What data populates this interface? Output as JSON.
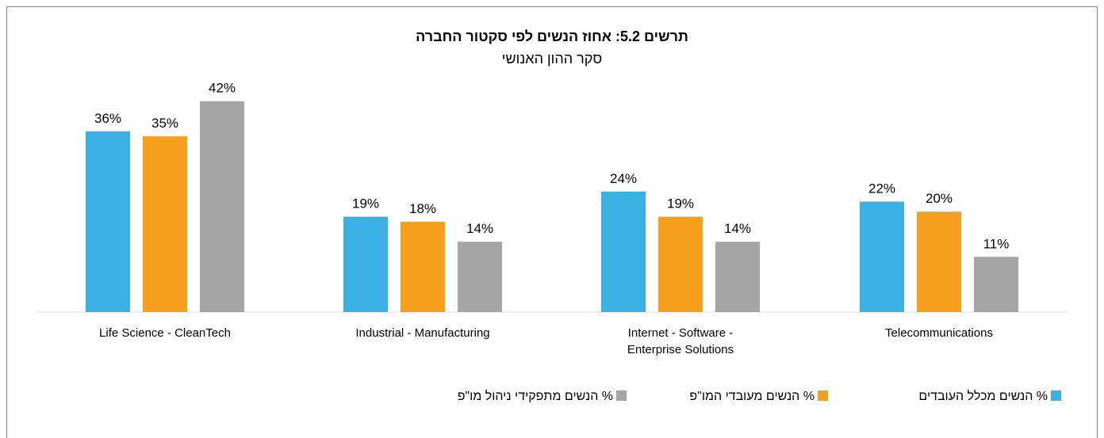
{
  "chart_data": {
    "type": "bar",
    "title": "תרשים 5.2: אחוז הנשים לפי סקטור החברה",
    "subtitle": "סקר ההון האנושי",
    "categories": [
      [
        "Life Science -  CleanTech"
      ],
      [
        "Industrial - Manufacturing"
      ],
      [
        "Internet -  Software -",
        "Enterprise Solutions"
      ],
      [
        "Telecommunications"
      ]
    ],
    "series": [
      {
        "name": "% הנשים מכלל העובדים",
        "color": "#3bb1e3",
        "values": [
          36,
          19,
          24,
          22
        ]
      },
      {
        "name": "% הנשים מעובדי המו\"פ",
        "color": "#f7a01e",
        "values": [
          35,
          18,
          19,
          20
        ]
      },
      {
        "name": "% הנשים מתפקידי ניהול מו\"פ",
        "color": "#a5a5a5",
        "values": [
          42,
          14,
          14,
          11
        ]
      }
    ],
    "value_suffix": "%",
    "ylim": [
      0,
      50
    ],
    "grid": false,
    "legend_position": "bottom"
  }
}
